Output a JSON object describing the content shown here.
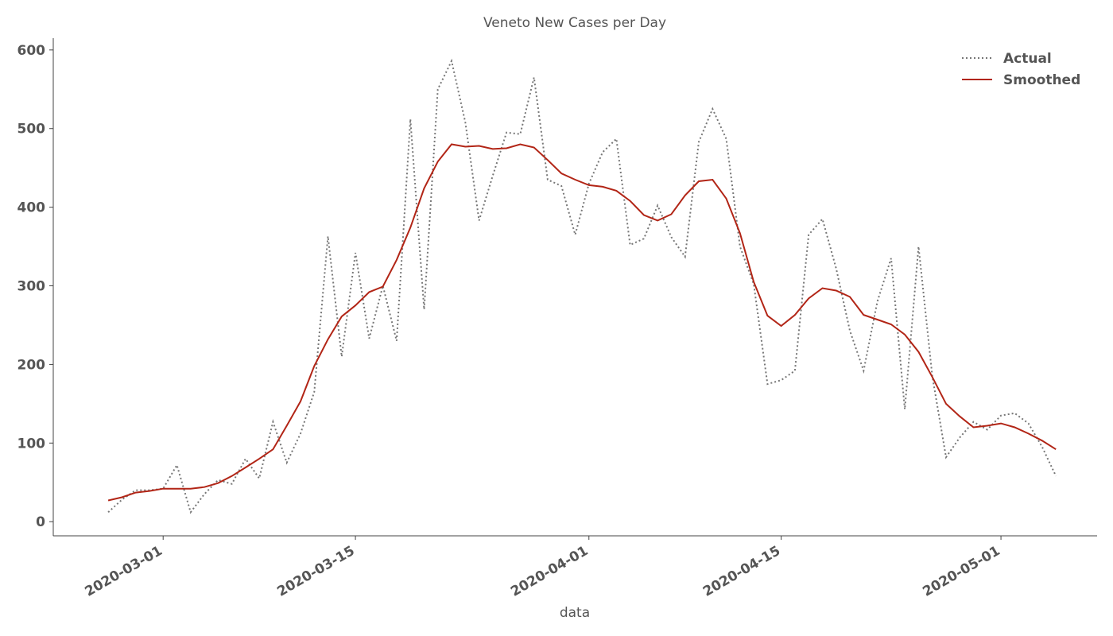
{
  "chart_data": {
    "type": "line",
    "title": "Veneto New Cases per Day",
    "xlabel": "data",
    "x": [
      "2020-02-26",
      "2020-02-27",
      "2020-02-28",
      "2020-02-29",
      "2020-03-01",
      "2020-03-02",
      "2020-03-03",
      "2020-03-04",
      "2020-03-05",
      "2020-03-06",
      "2020-03-07",
      "2020-03-08",
      "2020-03-09",
      "2020-03-10",
      "2020-03-11",
      "2020-03-12",
      "2020-03-13",
      "2020-03-14",
      "2020-03-15",
      "2020-03-16",
      "2020-03-17",
      "2020-03-18",
      "2020-03-19",
      "2020-03-20",
      "2020-03-21",
      "2020-03-22",
      "2020-03-23",
      "2020-03-24",
      "2020-03-25",
      "2020-03-26",
      "2020-03-27",
      "2020-03-28",
      "2020-03-29",
      "2020-03-30",
      "2020-03-31",
      "2020-04-01",
      "2020-04-02",
      "2020-04-03",
      "2020-04-04",
      "2020-04-05",
      "2020-04-06",
      "2020-04-07",
      "2020-04-08",
      "2020-04-09",
      "2020-04-10",
      "2020-04-11",
      "2020-04-12",
      "2020-04-13",
      "2020-04-14",
      "2020-04-15",
      "2020-04-16",
      "2020-04-17",
      "2020-04-18",
      "2020-04-19",
      "2020-04-20",
      "2020-04-21",
      "2020-04-22",
      "2020-04-23",
      "2020-04-24",
      "2020-04-25",
      "2020-04-26",
      "2020-04-27",
      "2020-04-28",
      "2020-04-29",
      "2020-04-30",
      "2020-05-01",
      "2020-05-02",
      "2020-05-03",
      "2020-05-04",
      "2020-05-05"
    ],
    "series": [
      {
        "name": "Actual",
        "color": "#777777",
        "dash": "dotted",
        "values": [
          12,
          28,
          40,
          40,
          42,
          72,
          12,
          35,
          53,
          48,
          80,
          55,
          127,
          75,
          112,
          165,
          363,
          210,
          342,
          233,
          300,
          230,
          512,
          270,
          550,
          586,
          508,
          383,
          440,
          495,
          493,
          565,
          435,
          427,
          365,
          430,
          470,
          487,
          352,
          360,
          402,
          362,
          337,
          483,
          525,
          487,
          350,
          302,
          175,
          180,
          192,
          365,
          385,
          322,
          243,
          192,
          280,
          335,
          143,
          350,
          185,
          82,
          107,
          127,
          117,
          135,
          138,
          125,
          95,
          58
        ]
      },
      {
        "name": "Smoothed",
        "color": "#b22516",
        "dash": "solid",
        "values": [
          27,
          31,
          37,
          39,
          42,
          42,
          42,
          44,
          49,
          58,
          69,
          80,
          92,
          122,
          153,
          198,
          232,
          261,
          275,
          292,
          299,
          333,
          374,
          424,
          458,
          480,
          477,
          478,
          474,
          475,
          480,
          476,
          460,
          443,
          435,
          428,
          426,
          421,
          408,
          390,
          383,
          391,
          415,
          433,
          435,
          411,
          367,
          305,
          262,
          249,
          263,
          284,
          297,
          294,
          286,
          263,
          257,
          251,
          238,
          216,
          184,
          150,
          134,
          120,
          122,
          125,
          120,
          112,
          103,
          92
        ]
      }
    ],
    "xlim": [
      "2020-02-22",
      "2020-05-08"
    ],
    "xticks": [
      "2020-03-01",
      "2020-03-15",
      "2020-04-01",
      "2020-04-15",
      "2020-05-01"
    ],
    "ylim": [
      -18,
      615
    ],
    "yticks": [
      0,
      100,
      200,
      300,
      400,
      500,
      600
    ],
    "grid": false,
    "legend": "upper right"
  }
}
